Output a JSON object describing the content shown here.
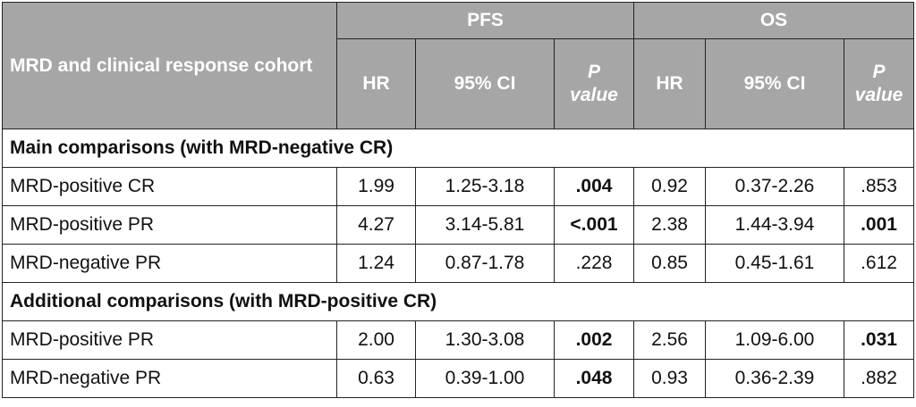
{
  "header": {
    "cohort_label": "MRD and clinical response cohort",
    "groups": [
      "PFS",
      "OS"
    ],
    "columns": {
      "hr": "HR",
      "ci": "95% CI",
      "p_letter": "P",
      "p_word": "value"
    }
  },
  "sections": [
    {
      "title": "Main comparisons (with MRD-negative CR)",
      "rows": [
        {
          "label": "MRD-positive CR",
          "pfs_hr": "1.99",
          "pfs_ci": "1.25-3.18",
          "pfs_p": ".004",
          "os_hr": "0.92",
          "os_ci": "0.37-2.26",
          "os_p": ".853"
        },
        {
          "label": "MRD-positive PR",
          "pfs_hr": "4.27",
          "pfs_ci": "3.14-5.81",
          "pfs_p": "<.001",
          "os_hr": "2.38",
          "os_ci": "1.44-3.94",
          "os_p": ".001"
        },
        {
          "label": "MRD-negative PR",
          "pfs_hr": "1.24",
          "pfs_ci": "0.87-1.78",
          "pfs_p": ".228",
          "os_hr": "0.85",
          "os_ci": "0.45-1.61",
          "os_p": ".612"
        }
      ]
    },
    {
      "title": "Additional comparisons (with MRD-positive CR)",
      "rows": [
        {
          "label": "MRD-positive PR",
          "pfs_hr": "2.00",
          "pfs_ci": "1.30-3.08",
          "pfs_p": ".002",
          "os_hr": "2.56",
          "os_ci": "1.09-6.00",
          "os_p": ".031"
        },
        {
          "label": "MRD-negative PR",
          "pfs_hr": "0.63",
          "pfs_ci": "0.39-1.00",
          "pfs_p": ".048",
          "os_hr": "0.93",
          "os_ci": "0.36-2.39",
          "os_p": ".882"
        }
      ]
    }
  ]
}
